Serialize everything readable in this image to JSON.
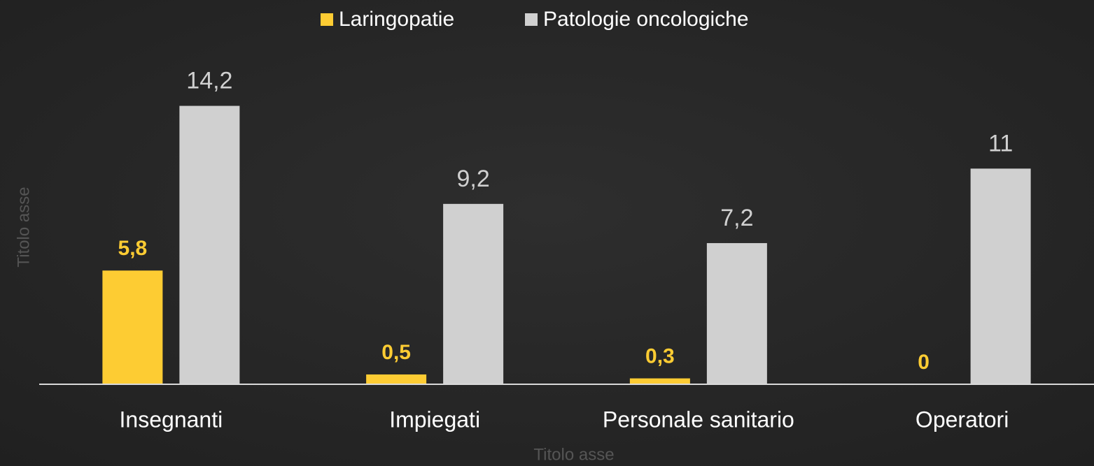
{
  "chart_data": {
    "type": "bar",
    "categories": [
      "Insegnanti",
      "Impiegati",
      "Personale sanitario",
      "Operatori"
    ],
    "series": [
      {
        "name": "Laringopatie",
        "color": "#fdcc33",
        "values": [
          5.8,
          0.5,
          0.3,
          0
        ],
        "value_labels": [
          "5,8",
          "0,5",
          "0,3",
          "0"
        ]
      },
      {
        "name": "Patologie oncologiche",
        "color": "#d0d0d0",
        "values": [
          14.2,
          9.2,
          7.2,
          11
        ],
        "value_labels": [
          "14,2",
          "9,2",
          "7,2",
          "11"
        ]
      }
    ],
    "x_label": "Titolo asse",
    "y_label": "Titolo asse",
    "ylim": [
      0,
      19.6
    ],
    "legend": "top"
  }
}
